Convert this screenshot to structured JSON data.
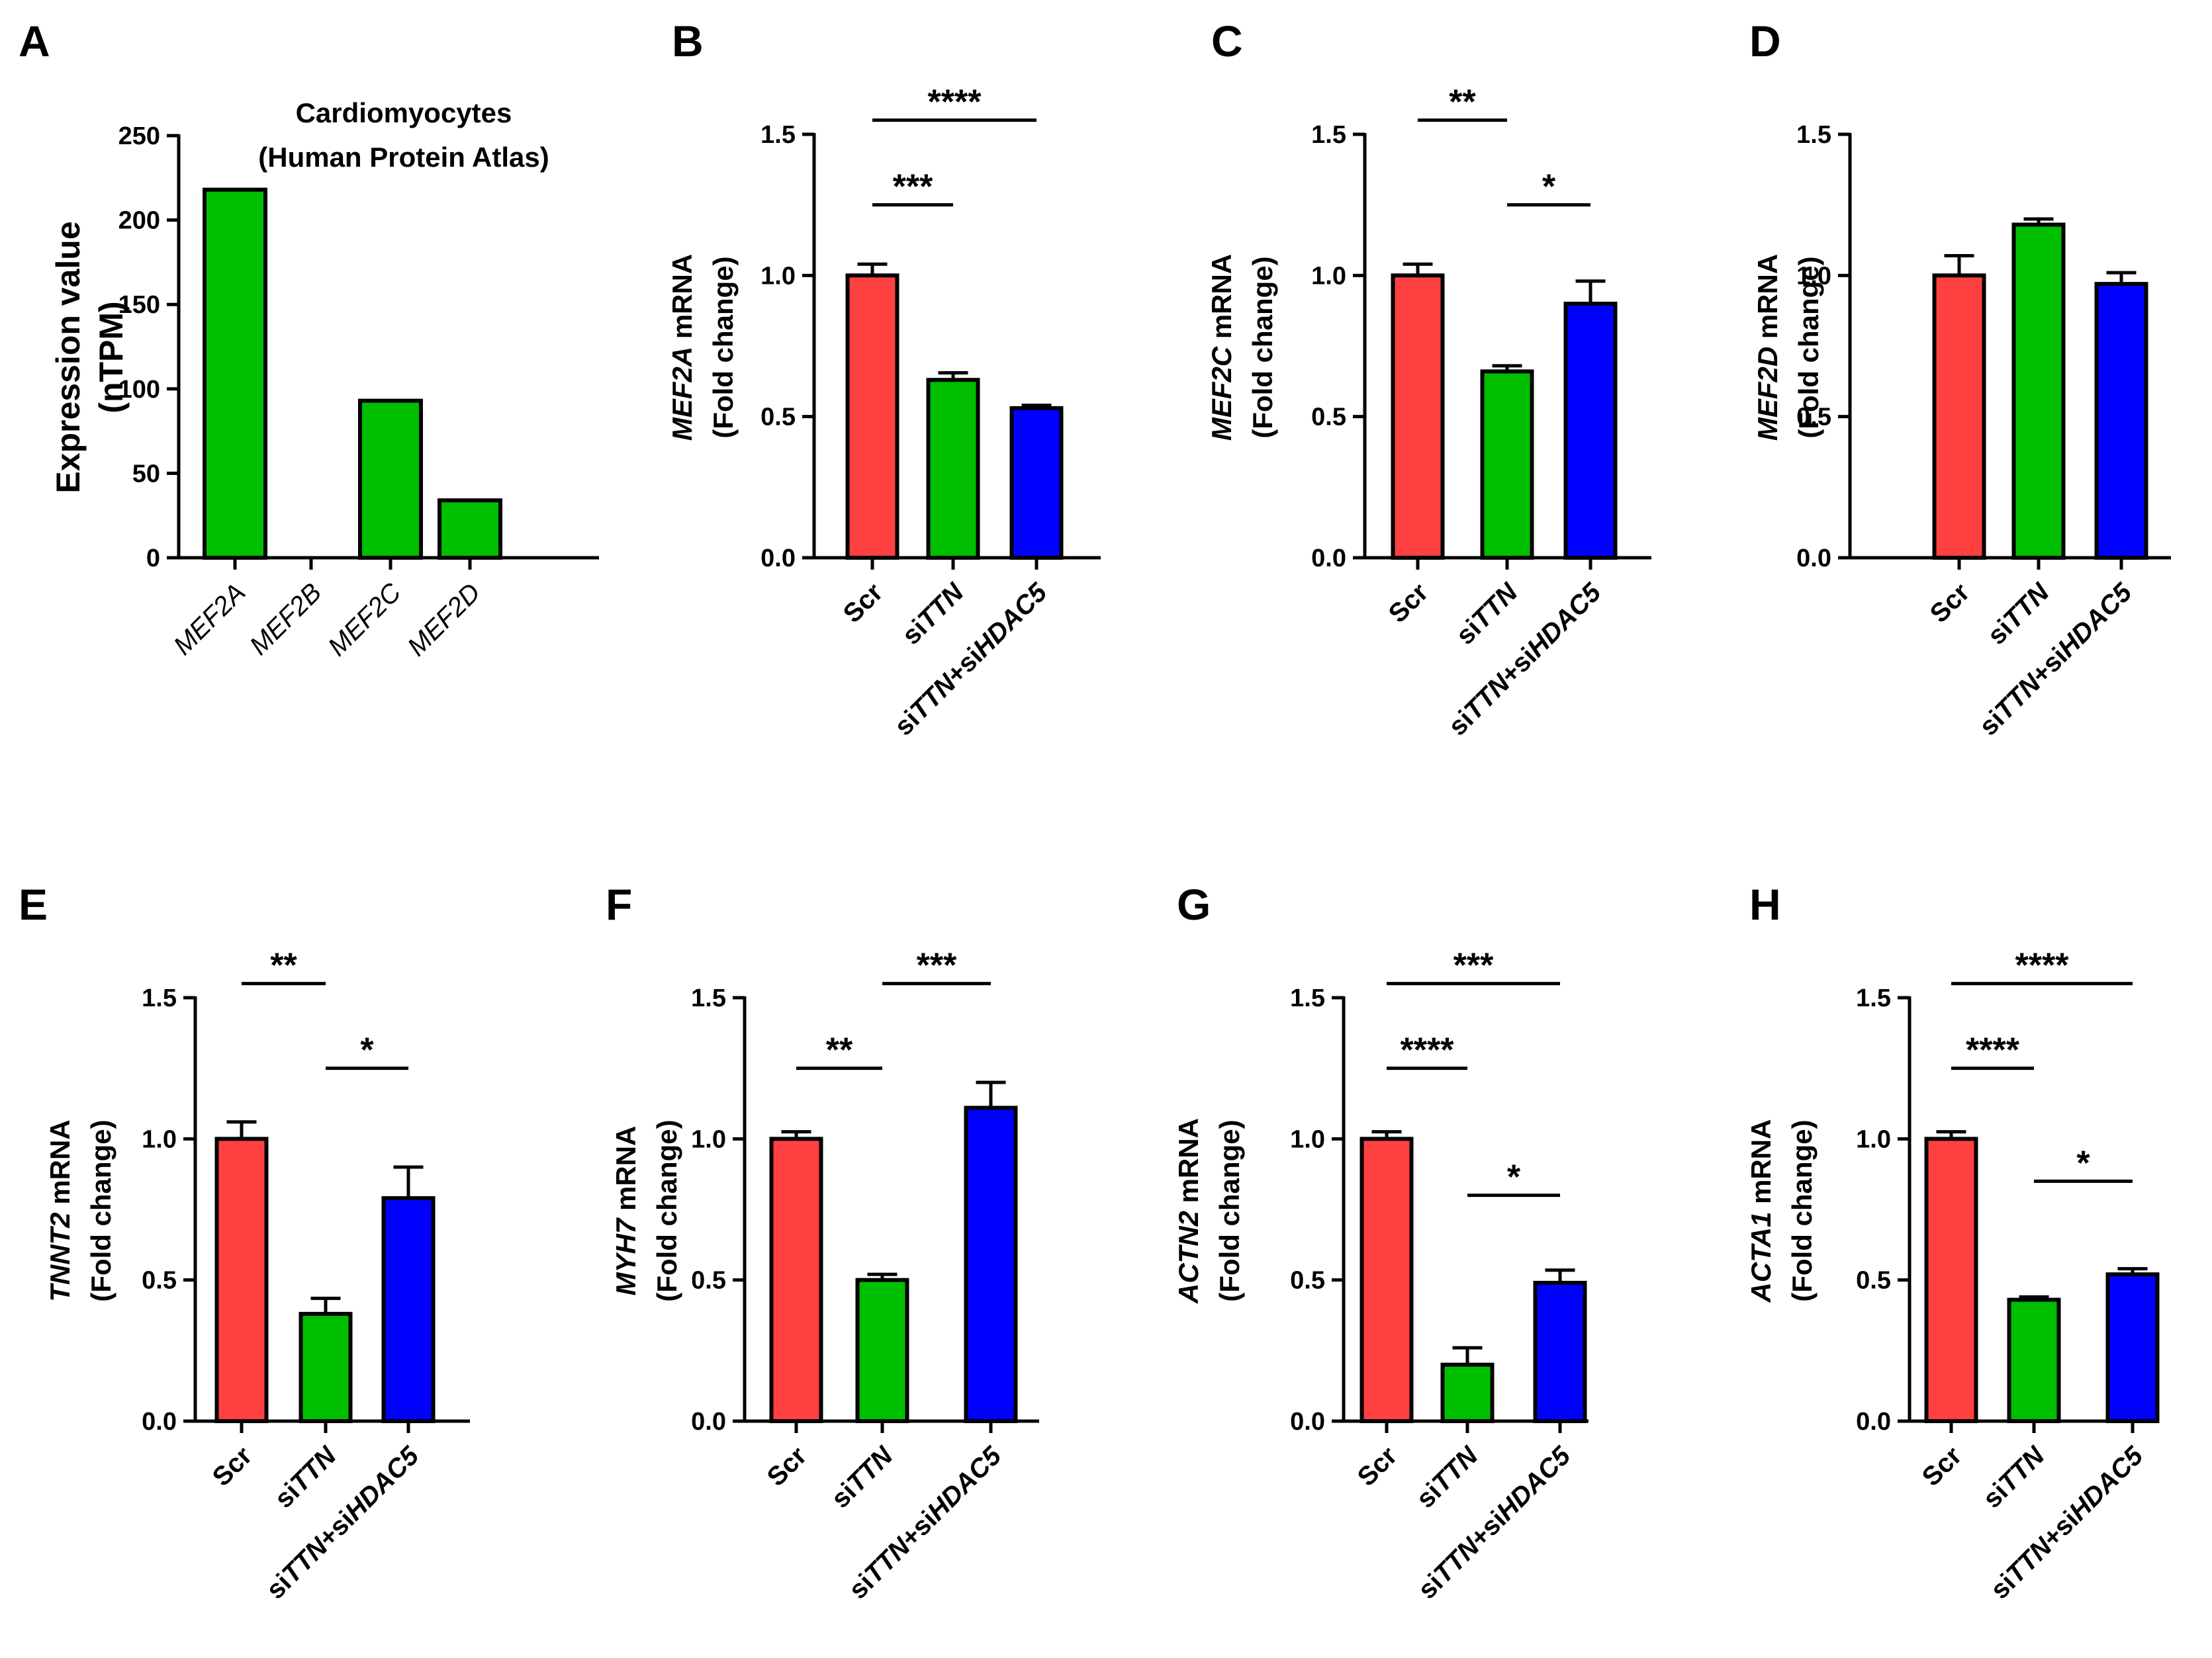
{
  "chart_data": [
    {
      "id": "A",
      "panel_label": "A",
      "type": "bar",
      "title": [
        "Cardiomyocytes",
        "(Human Protein Atlas)"
      ],
      "xlabel": "",
      "ylabel": {
        "parts": [
          {
            "t": "Expression value",
            "i": false
          }
        ],
        "line2": "(nTPM)"
      },
      "categories": [
        [
          {
            "t": "MEF2A",
            "i": true
          }
        ],
        [
          {
            "t": "MEF2B",
            "i": true
          }
        ],
        [
          {
            "t": "MEF2C",
            "i": true
          }
        ],
        [
          {
            "t": "MEF2D",
            "i": true
          }
        ]
      ],
      "values": [
        218,
        0,
        93,
        34
      ],
      "errors": [],
      "colors": [
        "#00bf00",
        "#00bf00",
        "#00bf00",
        "#00bf00"
      ],
      "ylim": [
        0,
        250
      ],
      "yticks": [
        0,
        50,
        100,
        150,
        200,
        250
      ],
      "ytick_labels": [
        "0",
        "50",
        "100",
        "150",
        "200",
        "250"
      ],
      "significance": []
    },
    {
      "id": "B",
      "panel_label": "B",
      "type": "bar",
      "title": [],
      "xlabel": "",
      "ylabel": {
        "parts": [
          {
            "t": "MEF2A",
            "i": true
          },
          {
            "t": " mRNA",
            "i": false
          }
        ],
        "line2": "(Fold change)"
      },
      "categories": [
        [
          {
            "t": "Scr",
            "i": false
          }
        ],
        [
          {
            "t": "si",
            "i": false
          },
          {
            "t": "TTN",
            "i": true
          }
        ],
        [
          {
            "t": "si",
            "i": false
          },
          {
            "t": "TTN",
            "i": true
          },
          {
            "t": "+si",
            "i": false
          },
          {
            "t": "HDAC5",
            "i": true
          }
        ]
      ],
      "values": [
        1.0,
        0.63,
        0.53
      ],
      "errors": [
        0.04,
        0.025,
        0.01
      ],
      "colors": [
        "#ff4040",
        "#00bf00",
        "#0000ff"
      ],
      "ylim": [
        0,
        1.5
      ],
      "yticks": [
        0,
        0.5,
        1.0,
        1.5
      ],
      "ytick_labels": [
        "0.0",
        "0.5",
        "1.0",
        "1.5"
      ],
      "significance": [
        {
          "from": 0,
          "to": 1,
          "label": "***",
          "y": 1.25
        },
        {
          "from": 0,
          "to": 2,
          "label": "****",
          "y": 1.55
        }
      ]
    },
    {
      "id": "C",
      "panel_label": "C",
      "type": "bar",
      "title": [],
      "xlabel": "",
      "ylabel": {
        "parts": [
          {
            "t": "MEF2C",
            "i": true
          },
          {
            "t": " mRNA",
            "i": false
          }
        ],
        "line2": "(Fold change)"
      },
      "categories": [
        [
          {
            "t": "Scr",
            "i": false
          }
        ],
        [
          {
            "t": "si",
            "i": false
          },
          {
            "t": "TTN",
            "i": true
          }
        ],
        [
          {
            "t": "si",
            "i": false
          },
          {
            "t": "TTN",
            "i": true
          },
          {
            "t": "+si",
            "i": false
          },
          {
            "t": "HDAC5",
            "i": true
          }
        ]
      ],
      "values": [
        1.0,
        0.66,
        0.9
      ],
      "errors": [
        0.04,
        0.02,
        0.08
      ],
      "colors": [
        "#ff4040",
        "#00bf00",
        "#0000ff"
      ],
      "ylim": [
        0,
        1.5
      ],
      "yticks": [
        0,
        0.5,
        1.0,
        1.5
      ],
      "ytick_labels": [
        "0.0",
        "0.5",
        "1.0",
        "1.5"
      ],
      "significance": [
        {
          "from": 0,
          "to": 1,
          "label": "**",
          "y": 1.55
        },
        {
          "from": 1,
          "to": 2,
          "label": "*",
          "y": 1.25
        }
      ]
    },
    {
      "id": "D",
      "panel_label": "D",
      "type": "bar",
      "title": [],
      "xlabel": "",
      "ylabel": {
        "parts": [
          {
            "t": "MEF2D",
            "i": true
          },
          {
            "t": " mRNA",
            "i": false
          }
        ],
        "line2": "(Fold change)"
      },
      "categories": [
        [
          {
            "t": "Scr",
            "i": false
          }
        ],
        [
          {
            "t": "si",
            "i": false
          },
          {
            "t": "TTN",
            "i": true
          }
        ],
        [
          {
            "t": "si",
            "i": false
          },
          {
            "t": "TTN",
            "i": true
          },
          {
            "t": "+si",
            "i": false
          },
          {
            "t": "HDAC5",
            "i": true
          }
        ]
      ],
      "values": [
        1.0,
        1.18,
        0.97
      ],
      "errors": [
        0.07,
        0.02,
        0.04
      ],
      "colors": [
        "#ff4040",
        "#00bf00",
        "#0000ff"
      ],
      "ylim": [
        0,
        1.5
      ],
      "yticks": [
        0,
        0.5,
        1.0,
        1.5
      ],
      "ytick_labels": [
        "0.0",
        "0.5",
        "1.0",
        "1.5"
      ],
      "significance": []
    },
    {
      "id": "E",
      "panel_label": "E",
      "type": "bar",
      "title": [],
      "xlabel": "",
      "ylabel": {
        "parts": [
          {
            "t": "TNNT2",
            "i": true
          },
          {
            "t": " mRNA",
            "i": false
          }
        ],
        "line2": "(Fold change)"
      },
      "categories": [
        [
          {
            "t": "Scr",
            "i": false
          }
        ],
        [
          {
            "t": "si",
            "i": false
          },
          {
            "t": "TTN",
            "i": true
          }
        ],
        [
          {
            "t": "si",
            "i": false
          },
          {
            "t": "TTN",
            "i": true
          },
          {
            "t": "+si",
            "i": false
          },
          {
            "t": "HDAC5",
            "i": true
          }
        ]
      ],
      "values": [
        1.0,
        0.38,
        0.79
      ],
      "errors": [
        0.06,
        0.055,
        0.11
      ],
      "colors": [
        "#ff4040",
        "#00bf00",
        "#0000ff"
      ],
      "ylim": [
        0,
        1.5
      ],
      "yticks": [
        0,
        0.5,
        1.0,
        1.5
      ],
      "ytick_labels": [
        "0.0",
        "0.5",
        "1.0",
        "1.5"
      ],
      "significance": [
        {
          "from": 0,
          "to": 1,
          "label": "**",
          "y": 1.55
        },
        {
          "from": 1,
          "to": 2,
          "label": "*",
          "y": 1.25
        }
      ]
    },
    {
      "id": "F",
      "panel_label": "F",
      "type": "bar",
      "title": [],
      "xlabel": "",
      "ylabel": {
        "parts": [
          {
            "t": "MYH7",
            "i": true
          },
          {
            "t": " mRNA",
            "i": false
          }
        ],
        "line2": "(Fold change)"
      },
      "categories": [
        [
          {
            "t": "Scr",
            "i": false
          }
        ],
        [
          {
            "t": "si",
            "i": false
          },
          {
            "t": "TTN",
            "i": true
          }
        ],
        [
          {
            "t": "si",
            "i": false
          },
          {
            "t": "TTN",
            "i": true
          },
          {
            "t": "+si",
            "i": false
          },
          {
            "t": "HDAC5",
            "i": true
          }
        ]
      ],
      "values": [
        1.0,
        0.5,
        1.11
      ],
      "errors": [
        0.025,
        0.02,
        0.09
      ],
      "colors": [
        "#ff4040",
        "#00bf00",
        "#0000ff"
      ],
      "ylim": [
        0,
        1.5
      ],
      "yticks": [
        0,
        0.5,
        1.0,
        1.5
      ],
      "ytick_labels": [
        "0.0",
        "0.5",
        "1.0",
        "1.5"
      ],
      "significance": [
        {
          "from": 0,
          "to": 1,
          "label": "**",
          "y": 1.25
        },
        {
          "from": 1,
          "to": 2,
          "label": "***",
          "y": 1.55
        }
      ]
    },
    {
      "id": "G",
      "panel_label": "G",
      "type": "bar",
      "title": [],
      "xlabel": "",
      "ylabel": {
        "parts": [
          {
            "t": "ACTN2",
            "i": true
          },
          {
            "t": " mRNA",
            "i": false
          }
        ],
        "line2": "(Fold change)"
      },
      "categories": [
        [
          {
            "t": "Scr",
            "i": false
          }
        ],
        [
          {
            "t": "si",
            "i": false
          },
          {
            "t": "TTN",
            "i": true
          }
        ],
        [
          {
            "t": "si",
            "i": false
          },
          {
            "t": "TTN",
            "i": true
          },
          {
            "t": "+si",
            "i": false
          },
          {
            "t": "HDAC5",
            "i": true
          }
        ]
      ],
      "values": [
        1.0,
        0.2,
        0.49
      ],
      "errors": [
        0.025,
        0.06,
        0.045
      ],
      "colors": [
        "#ff4040",
        "#00bf00",
        "#0000ff"
      ],
      "ylim": [
        0,
        1.5
      ],
      "yticks": [
        0,
        0.5,
        1.0,
        1.5
      ],
      "ytick_labels": [
        "0.0",
        "0.5",
        "1.0",
        "1.5"
      ],
      "significance": [
        {
          "from": 0,
          "to": 1,
          "label": "****",
          "y": 1.25
        },
        {
          "from": 0,
          "to": 2,
          "label": "***",
          "y": 1.55
        },
        {
          "from": 1,
          "to": 2,
          "label": "*",
          "y": 0.8
        }
      ]
    },
    {
      "id": "H",
      "panel_label": "H",
      "type": "bar",
      "title": [],
      "xlabel": "",
      "ylabel": {
        "parts": [
          {
            "t": "ACTA1",
            "i": true
          },
          {
            "t": " mRNA",
            "i": false
          }
        ],
        "line2": "(Fold change)"
      },
      "categories": [
        [
          {
            "t": "Scr",
            "i": false
          }
        ],
        [
          {
            "t": "si",
            "i": false
          },
          {
            "t": "TTN",
            "i": true
          }
        ],
        [
          {
            "t": "si",
            "i": false
          },
          {
            "t": "TTN",
            "i": true
          },
          {
            "t": "+si",
            "i": false
          },
          {
            "t": "HDAC5",
            "i": true
          }
        ]
      ],
      "values": [
        1.0,
        0.43,
        0.52
      ],
      "errors": [
        0.025,
        0.01,
        0.02
      ],
      "colors": [
        "#ff4040",
        "#00bf00",
        "#0000ff"
      ],
      "ylim": [
        0,
        1.5
      ],
      "yticks": [
        0,
        0.5,
        1.0,
        1.5
      ],
      "ytick_labels": [
        "0.0",
        "0.5",
        "1.0",
        "1.5"
      ],
      "significance": [
        {
          "from": 0,
          "to": 1,
          "label": "****",
          "y": 1.25
        },
        {
          "from": 0,
          "to": 2,
          "label": "****",
          "y": 1.55
        },
        {
          "from": 1,
          "to": 2,
          "label": "*",
          "y": 0.85
        }
      ]
    }
  ]
}
